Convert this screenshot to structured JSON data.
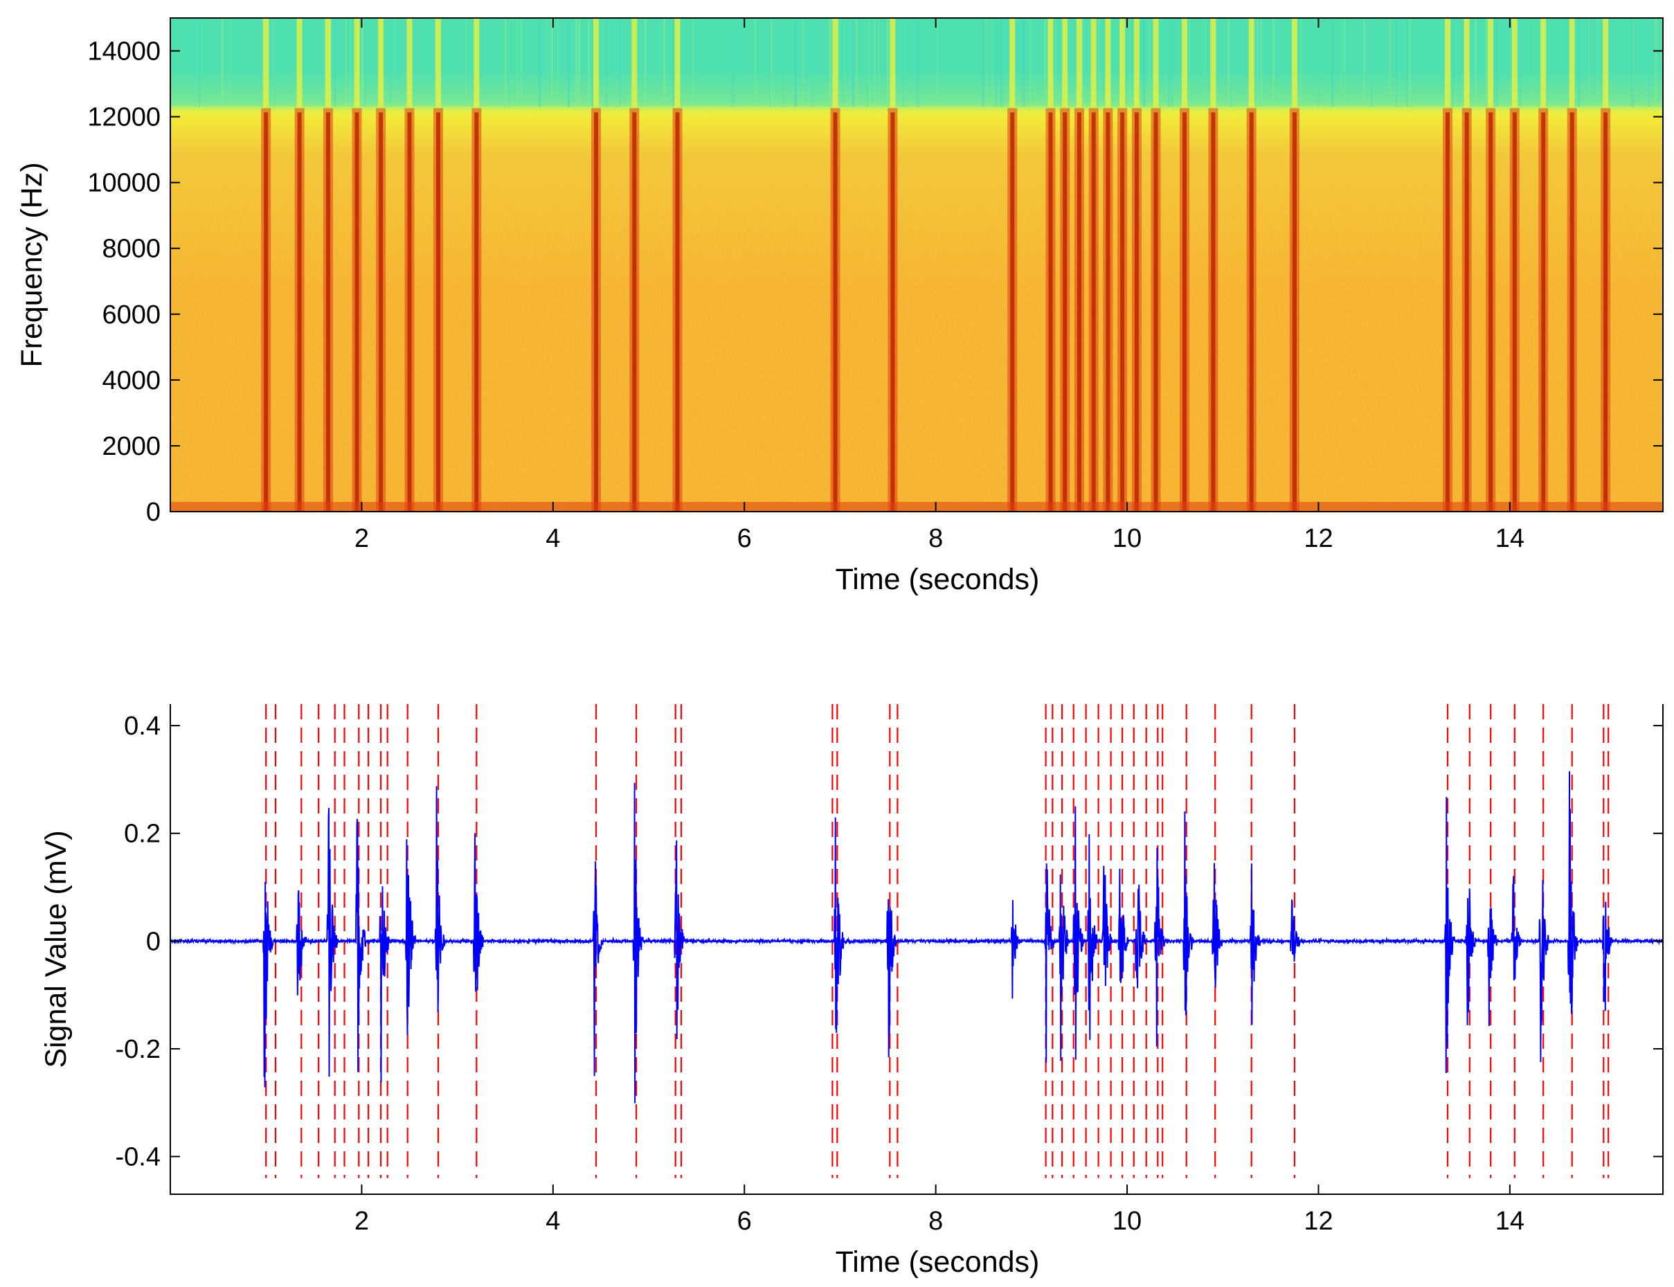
{
  "chart_data": [
    {
      "type": "heatmap",
      "subtype": "spectrogram",
      "title": "",
      "xlabel": "Time (seconds)",
      "ylabel": "Frequency (Hz)",
      "xlim": [
        0,
        15.6
      ],
      "ylim": [
        0,
        15000
      ],
      "xticks": [
        2,
        4,
        6,
        8,
        10,
        12,
        14
      ],
      "xtick_labels": [
        "2",
        "4",
        "6",
        "8",
        "10",
        "12",
        "14"
      ],
      "yticks": [
        0,
        2000,
        4000,
        6000,
        8000,
        10000,
        12000,
        14000
      ],
      "ytick_labels": [
        "0",
        "2000",
        "4000",
        "6000",
        "8000",
        "10000",
        "12000",
        "14000"
      ],
      "band_cutoff_hz": 12300,
      "colormap": {
        "upper_band": "#4fe0b0",
        "upper_band_alt": "#7ce890",
        "yellow": "#f3f23a",
        "orange": "#f6b531",
        "orange_light": "#f2c838",
        "red": "#e04010",
        "dark_red": "#b82000"
      },
      "event_times_s": [
        1.0,
        1.35,
        1.65,
        1.95,
        2.2,
        2.5,
        2.8,
        3.2,
        4.45,
        4.85,
        5.3,
        6.95,
        7.55,
        8.8,
        9.2,
        9.35,
        9.5,
        9.65,
        9.8,
        9.95,
        10.1,
        10.3,
        10.6,
        10.9,
        11.3,
        11.75,
        13.35,
        13.55,
        13.8,
        14.05,
        14.35,
        14.65,
        15.0
      ]
    },
    {
      "type": "line",
      "title": "",
      "xlabel": "Time (seconds)",
      "ylabel": "Signal Value (mV)",
      "xlim": [
        0,
        15.6
      ],
      "ylim": [
        -0.47,
        0.44
      ],
      "xticks": [
        2,
        4,
        6,
        8,
        10,
        12,
        14
      ],
      "xtick_labels": [
        "2",
        "4",
        "6",
        "8",
        "10",
        "12",
        "14"
      ],
      "yticks": [
        -0.4,
        -0.2,
        0,
        0.2,
        0.4
      ],
      "ytick_labels": [
        "-0.4",
        "-0.2",
        "0",
        "0.2",
        "0.4"
      ],
      "series": [
        {
          "name": "signal",
          "color": "#0000ff",
          "baseline_noise_mV": 0.006,
          "bursts": [
            {
              "t": 0.98,
              "amp": 0.38
            },
            {
              "t": 1.33,
              "amp": 0.23
            },
            {
              "t": 1.65,
              "amp": 0.43
            },
            {
              "t": 1.95,
              "amp": 0.44
            },
            {
              "t": 2.2,
              "amp": 0.38
            },
            {
              "t": 2.47,
              "amp": 0.44
            },
            {
              "t": 2.78,
              "amp": 0.32
            },
            {
              "t": 3.18,
              "amp": 0.3
            },
            {
              "t": 4.43,
              "amp": 0.3
            },
            {
              "t": 4.85,
              "amp": 0.4
            },
            {
              "t": 5.28,
              "amp": 0.4
            },
            {
              "t": 6.95,
              "amp": 0.47
            },
            {
              "t": 7.5,
              "amp": 0.36
            },
            {
              "t": 8.8,
              "amp": 0.13
            },
            {
              "t": 9.15,
              "amp": 0.28
            },
            {
              "t": 9.3,
              "amp": 0.36
            },
            {
              "t": 9.45,
              "amp": 0.4
            },
            {
              "t": 9.6,
              "amp": 0.32
            },
            {
              "t": 9.75,
              "amp": 0.33
            },
            {
              "t": 9.92,
              "amp": 0.3
            },
            {
              "t": 10.1,
              "amp": 0.33
            },
            {
              "t": 10.3,
              "amp": 0.32
            },
            {
              "t": 10.6,
              "amp": 0.28
            },
            {
              "t": 10.9,
              "amp": 0.34
            },
            {
              "t": 11.3,
              "amp": 0.28
            },
            {
              "t": 11.72,
              "amp": 0.14
            },
            {
              "t": 13.33,
              "amp": 0.42
            },
            {
              "t": 13.55,
              "amp": 0.31
            },
            {
              "t": 13.78,
              "amp": 0.2
            },
            {
              "t": 14.03,
              "amp": 0.2
            },
            {
              "t": 14.32,
              "amp": 0.34
            },
            {
              "t": 14.62,
              "amp": 0.42
            },
            {
              "t": 14.98,
              "amp": 0.3
            }
          ]
        }
      ],
      "markers": {
        "color": "#ff0000",
        "style": "dashed-vertical",
        "x": [
          1.0,
          1.1,
          1.37,
          1.55,
          1.72,
          1.82,
          1.97,
          2.07,
          2.2,
          2.27,
          2.48,
          2.8,
          3.2,
          4.45,
          4.87,
          5.28,
          5.34,
          6.92,
          6.97,
          7.52,
          7.6,
          9.15,
          9.22,
          9.32,
          9.44,
          9.57,
          9.7,
          9.83,
          9.95,
          10.07,
          10.2,
          10.32,
          10.37,
          10.62,
          10.92,
          11.3,
          11.75,
          13.35,
          13.58,
          13.8,
          14.05,
          14.35,
          14.65,
          14.98,
          15.03
        ]
      }
    }
  ]
}
